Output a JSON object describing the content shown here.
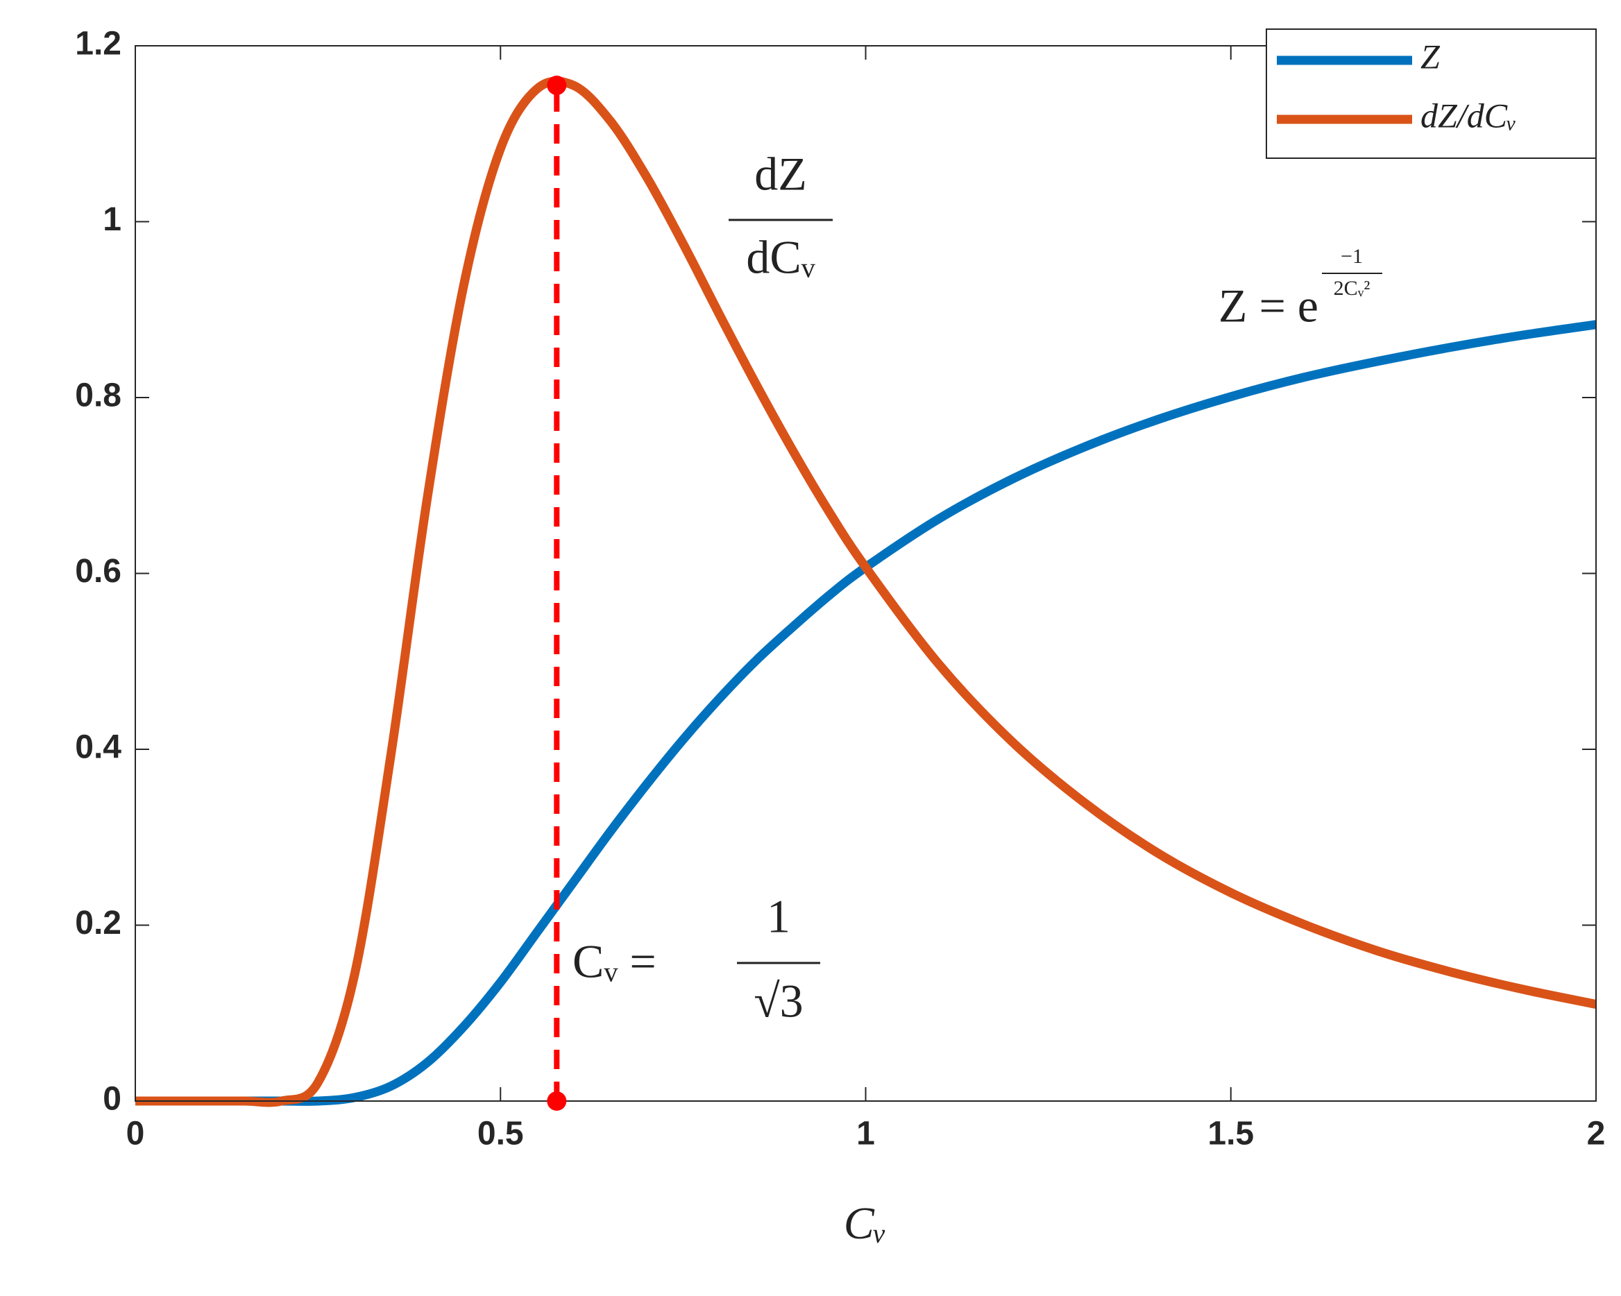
{
  "chart_data": {
    "type": "line",
    "x": [
      0,
      0.05,
      0.1,
      0.15,
      0.2,
      0.25,
      0.3,
      0.35,
      0.4,
      0.45,
      0.5,
      0.55,
      0.6,
      0.65,
      0.7,
      0.75,
      0.8,
      0.85,
      0.9,
      0.95,
      1.0,
      1.1,
      1.2,
      1.3,
      1.4,
      1.5,
      1.6,
      1.7,
      1.8,
      1.9,
      2.0
    ],
    "series": [
      {
        "name": "Z",
        "color": "#0072bd",
        "values": [
          0,
          0,
          0,
          0,
          0,
          0,
          0.004,
          0.017,
          0.044,
          0.085,
          0.135,
          0.192,
          0.249,
          0.306,
          0.36,
          0.411,
          0.458,
          0.501,
          0.539,
          0.575,
          0.607,
          0.662,
          0.707,
          0.744,
          0.775,
          0.801,
          0.823,
          0.841,
          0.857,
          0.871,
          0.883
        ]
      },
      {
        "name": "dZ/dCᵥ",
        "color": "#d95319",
        "values": [
          0,
          0,
          0,
          0,
          0,
          0.021,
          0.143,
          0.394,
          0.687,
          0.929,
          1.083,
          1.151,
          1.155,
          1.115,
          1.051,
          0.975,
          0.894,
          0.815,
          0.74,
          0.67,
          0.607,
          0.497,
          0.409,
          0.339,
          0.282,
          0.237,
          0.201,
          0.171,
          0.147,
          0.127,
          0.11
        ]
      }
    ],
    "reference": {
      "x": 0.577,
      "y": [
        0,
        1.155
      ],
      "color": "#ff0000"
    },
    "xlabel": "Cᵥ",
    "xlim": [
      0,
      2
    ],
    "xticks": [
      0,
      0.5,
      1,
      1.5,
      2
    ],
    "ylim": [
      0,
      1.2
    ],
    "yticks": [
      0,
      0.2,
      0.4,
      0.6,
      0.8,
      1,
      1.2
    ],
    "legend": "upper right",
    "annotations": [
      {
        "numerator": "dZ",
        "denominator": "dCᵥ"
      },
      {
        "base": "Z = e",
        "exp_numerator": "−1",
        "exp_denominator": "2Cᵥ²"
      },
      {
        "lhs": "Cᵥ =",
        "numerator": "1",
        "denominator": "√3"
      }
    ]
  }
}
